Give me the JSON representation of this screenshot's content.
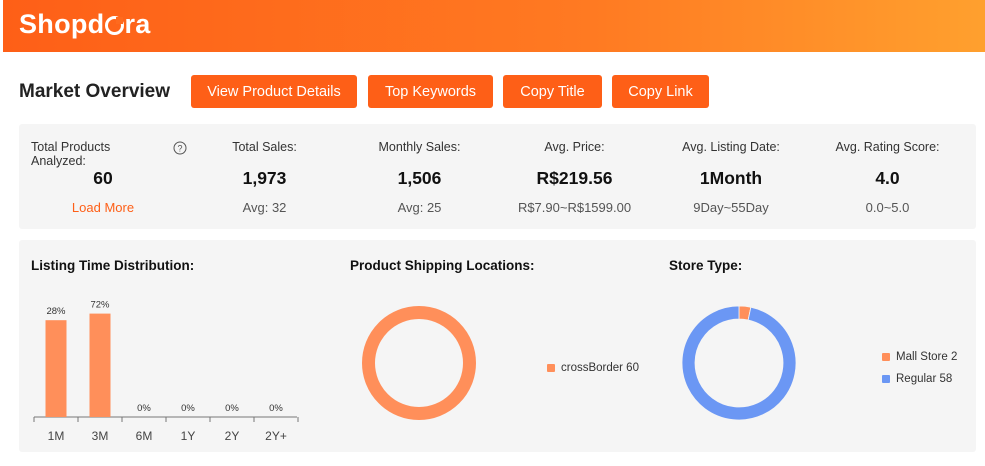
{
  "header": {
    "logo_text_1": "Shopd",
    "logo_text_2": "ra"
  },
  "page_title": "Market Overview",
  "toolbar": {
    "view_details_label": "View Product Details",
    "top_keywords_label": "Top Keywords",
    "copy_title_label": "Copy Title",
    "copy_link_label": "Copy Link"
  },
  "colors": {
    "accent": "#fe5f17",
    "bar": "#ff8f5a",
    "regular": "#6b97f4",
    "panel": "#f5f5f5"
  },
  "stats": {
    "total_products": {
      "label": "Total Products Analyzed:",
      "value": "60",
      "link": "Load More",
      "help_icon": "question-circle-icon"
    },
    "total_sales": {
      "label": "Total Sales:",
      "value": "1,973",
      "sub": "Avg: 32"
    },
    "monthly_sales": {
      "label": "Monthly Sales:",
      "value": "1,506",
      "sub": "Avg: 25"
    },
    "avg_price": {
      "label": "Avg. Price:",
      "value": "R$219.56",
      "sub": "R$7.90~R$1599.00"
    },
    "avg_listing_date": {
      "label": "Avg. Listing Date:",
      "value": "1Month",
      "sub": "9Day~55Day"
    },
    "avg_rating": {
      "label": "Avg. Rating Score:",
      "value": "4.0",
      "sub": "0.0~5.0"
    }
  },
  "sections": {
    "listing_time": "Listing Time Distribution:",
    "shipping": "Product Shipping Locations:",
    "store_type": "Store Type:"
  },
  "chart_data": [
    {
      "type": "bar",
      "title": "Listing Time Distribution:",
      "categories": [
        "1M",
        "3M",
        "6M",
        "1Y",
        "2Y",
        "2Y+"
      ],
      "values": [
        28,
        72,
        0,
        0,
        0,
        0
      ],
      "value_labels": [
        "28%",
        "72%",
        "0%",
        "0%",
        "0%",
        "0%"
      ],
      "bar_scale_percent": [
        0.88,
        0.94,
        0,
        0,
        0,
        0
      ]
    },
    {
      "type": "pie",
      "title": "Product Shipping Locations:",
      "slices": [
        {
          "name": "crossBorder",
          "value": 60,
          "label": "crossBorder 60",
          "color": "#ff8f5a"
        }
      ]
    },
    {
      "type": "pie",
      "title": "Store Type:",
      "slices": [
        {
          "name": "Mall Store",
          "value": 2,
          "label": "Mall Store 2",
          "color": "#ff8f5a"
        },
        {
          "name": "Regular",
          "value": 58,
          "label": "Regular 58",
          "color": "#6b97f4"
        }
      ]
    }
  ]
}
